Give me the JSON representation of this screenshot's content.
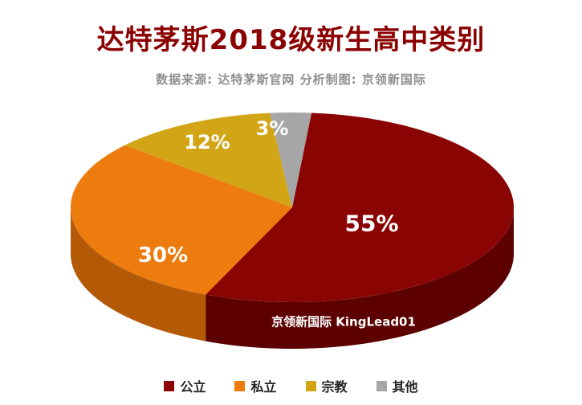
{
  "title": "达特茅斯2018级新生高中类别",
  "subtitle": "数据来源: 达特茅斯官网 分析制图: 京领新国际",
  "watermark": "京领新国际 KingLead01",
  "chart_data": {
    "type": "pie",
    "style": "3d",
    "title": "达特茅斯2018级新生高中类别",
    "source_note": "数据来源: 达特茅斯官网 分析制图: 京领新国际",
    "legend_position": "bottom",
    "start_angle_deg": 5,
    "slices": [
      {
        "label": "公立",
        "value": 55,
        "pct": "55%",
        "color": "#8B0404",
        "side_color": "#5C0000"
      },
      {
        "label": "私立",
        "value": 30,
        "pct": "30%",
        "color": "#ED7C0F",
        "side_color": "#B45A07"
      },
      {
        "label": "宗教",
        "value": 12,
        "pct": "12%",
        "color": "#D2A516",
        "side_color": "#9E7C0D"
      },
      {
        "label": "其他",
        "value": 3,
        "pct": "3%",
        "color": "#A6A6A6",
        "side_color": "#808080"
      }
    ]
  }
}
